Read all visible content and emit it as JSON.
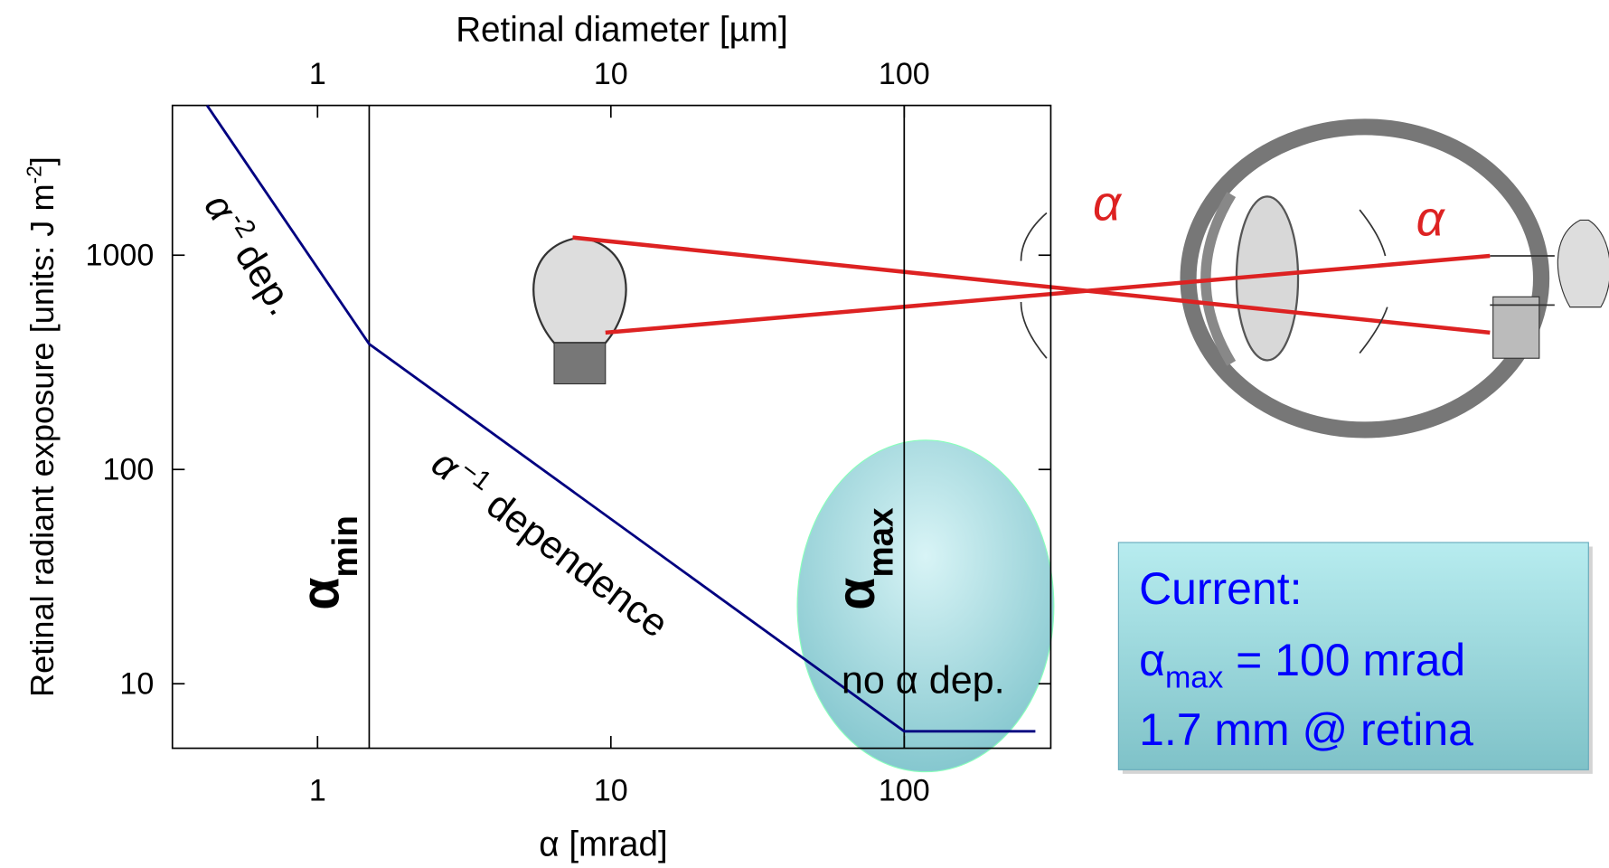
{
  "chart_data": {
    "type": "line",
    "x_label": "α [mrad]",
    "x2_label": "Retinal diameter [µm]",
    "y_label": {
      "text": "Retinal radiant exposure  [units: J m",
      "exponent": "-2",
      "close": "]"
    },
    "xscale": "log",
    "yscale": "log",
    "xlim": [
      0.32,
      316
    ],
    "xticks": [
      1,
      10,
      100
    ],
    "x2lim": [
      0.32,
      316
    ],
    "x2ticks": [
      1,
      10,
      100
    ],
    "ylim": [
      5,
      5000
    ],
    "yticks": [
      10,
      100,
      1000
    ],
    "x": [
      0.42,
      1.5,
      100,
      280
    ],
    "values": [
      5000,
      385,
      6,
      6
    ],
    "color": "#000080",
    "vlines": [
      1.5,
      100
    ],
    "annotations": {
      "slope_minus2": {
        "symbol": "α",
        "exponent": "-2",
        "text": "dep."
      },
      "slope_minus1": {
        "symbol": "α",
        "exponent": "−1",
        "text": "dependence"
      },
      "flat": "no α dep.",
      "alpha_min": {
        "symbol": "α",
        "subscript": "min"
      },
      "alpha_max": {
        "symbol": "α",
        "subscript": "max"
      }
    },
    "current_box": {
      "heading": "Current:",
      "line1": {
        "symbol": "α",
        "subscript": "max",
        "text": " = 100 mrad"
      },
      "line2": "1.7 mm @ retina"
    },
    "illustration_labels": [
      "α",
      "α"
    ]
  }
}
